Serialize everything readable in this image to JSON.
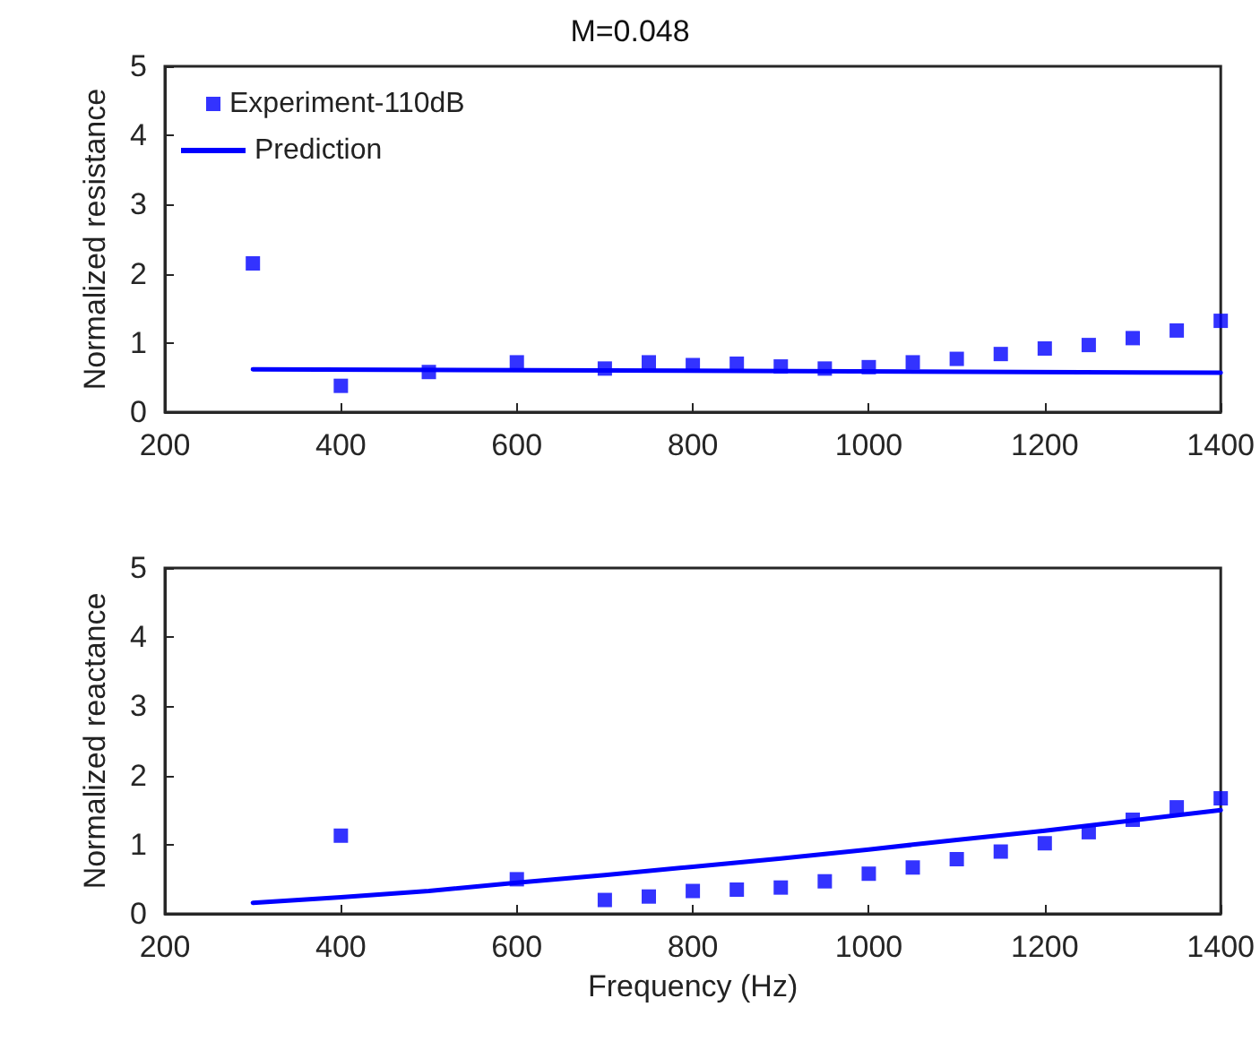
{
  "chart_data": [
    {
      "type": "scatter",
      "title": "M=0.048",
      "ylabel": "Normalized resistance",
      "xlim": [
        200,
        1400
      ],
      "xticks": [
        200,
        400,
        600,
        800,
        1000,
        1200,
        1400
      ],
      "ylim": [
        0,
        5
      ],
      "yticks": [
        0,
        1,
        2,
        3,
        4,
        5
      ],
      "grid": false,
      "legend": "top left",
      "marker": "square",
      "series": [
        {
          "name": "Experiment-110dB",
          "color": "#0000ff",
          "x": [
            300,
            400,
            500,
            600,
            700,
            750,
            800,
            850,
            900,
            950,
            1000,
            1050,
            1100,
            1150,
            1200,
            1250,
            1300,
            1350,
            1400
          ],
          "values": [
            2.15,
            0.38,
            0.58,
            0.72,
            0.63,
            0.72,
            0.68,
            0.7,
            0.66,
            0.63,
            0.65,
            0.72,
            0.77,
            0.84,
            0.92,
            0.97,
            1.07,
            1.18,
            1.32
          ]
        },
        {
          "name": "Prediction",
          "color": "#0000ff",
          "type": "line",
          "marker": "none",
          "line_style": "solid",
          "x": [
            300,
            1400
          ],
          "values": [
            0.62,
            0.57
          ]
        }
      ]
    },
    {
      "type": "scatter",
      "xlabel": "Frequency (Hz)",
      "ylabel": "Normalized reactance",
      "xlim": [
        200,
        1400
      ],
      "xticks": [
        200,
        400,
        600,
        800,
        1000,
        1200,
        1400
      ],
      "ylim": [
        0,
        5
      ],
      "yticks": [
        0,
        1,
        2,
        3,
        4,
        5
      ],
      "grid": false,
      "legend": false,
      "marker": "square",
      "series": [
        {
          "color": "#0000ff",
          "x": [
            400,
            600,
            700,
            750,
            800,
            850,
            900,
            950,
            1000,
            1050,
            1100,
            1150,
            1200,
            1250,
            1300,
            1350,
            1400
          ],
          "values": [
            1.13,
            0.5,
            0.2,
            0.25,
            0.33,
            0.35,
            0.38,
            0.47,
            0.58,
            0.67,
            0.79,
            0.9,
            1.02,
            1.18,
            1.36,
            1.54,
            1.67
          ]
        },
        {
          "color": "#0000ff",
          "type": "line",
          "marker": "none",
          "line_style": "solid",
          "x": [
            300,
            400,
            500,
            600,
            700,
            800,
            900,
            1000,
            1100,
            1200,
            1300,
            1400
          ],
          "values": [
            0.16,
            0.24,
            0.33,
            0.45,
            0.56,
            0.68,
            0.8,
            0.93,
            1.07,
            1.2,
            1.35,
            1.5
          ]
        }
      ]
    }
  ]
}
